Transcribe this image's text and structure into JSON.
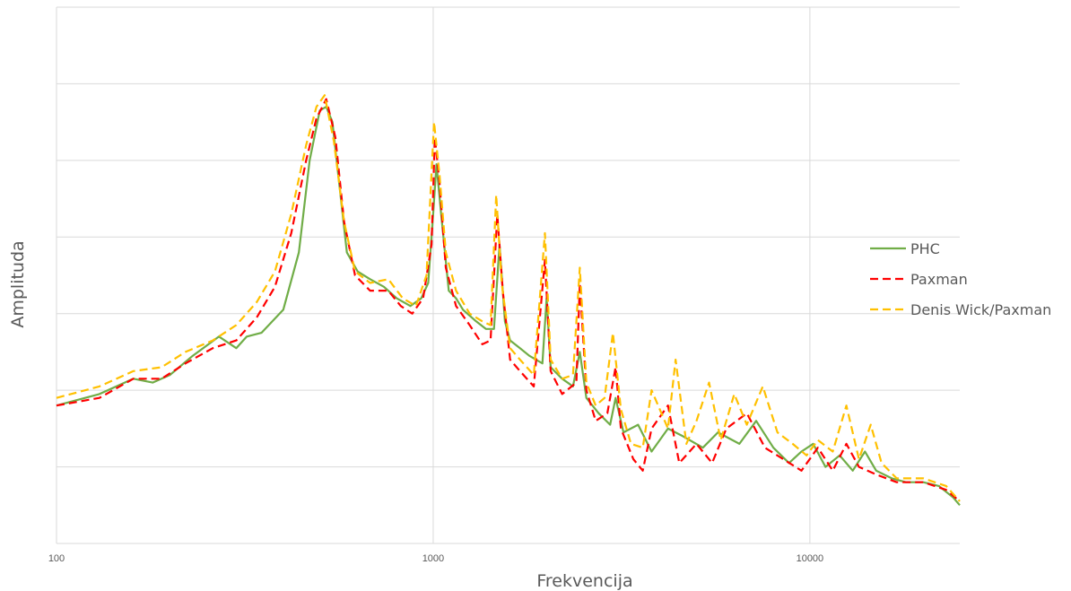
{
  "chart_data": {
    "type": "line",
    "title": "",
    "xlabel": "Frekvencija",
    "ylabel": "Amplituda",
    "x_scale": "log",
    "xlim": [
      100,
      25000
    ],
    "ylim": [
      0,
      7
    ],
    "x_ticks": [
      100,
      1000,
      10000
    ],
    "x_tick_labels": [
      "100",
      "1000",
      "10000"
    ],
    "y_gridlines": [
      1,
      2,
      3,
      4,
      5,
      6,
      7
    ],
    "y_tick_labels_shown": false,
    "grid": true,
    "legend_position": "right",
    "series": [
      {
        "name": "PHC",
        "color": "#70AD47",
        "dash": "solid",
        "points": [
          [
            100,
            1.8
          ],
          [
            130,
            1.95
          ],
          [
            160,
            2.15
          ],
          [
            180,
            2.1
          ],
          [
            200,
            2.2
          ],
          [
            230,
            2.45
          ],
          [
            270,
            2.7
          ],
          [
            300,
            2.55
          ],
          [
            320,
            2.7
          ],
          [
            350,
            2.75
          ],
          [
            400,
            3.05
          ],
          [
            440,
            3.8
          ],
          [
            470,
            5.0
          ],
          [
            500,
            5.65
          ],
          [
            520,
            5.7
          ],
          [
            540,
            5.5
          ],
          [
            560,
            4.8
          ],
          [
            590,
            3.8
          ],
          [
            630,
            3.55
          ],
          [
            680,
            3.45
          ],
          [
            740,
            3.35
          ],
          [
            800,
            3.2
          ],
          [
            870,
            3.1
          ],
          [
            930,
            3.2
          ],
          [
            970,
            3.4
          ],
          [
            1000,
            4.3
          ],
          [
            1020,
            4.95
          ],
          [
            1050,
            4.3
          ],
          [
            1100,
            3.3
          ],
          [
            1150,
            3.2
          ],
          [
            1200,
            3.05
          ],
          [
            1300,
            2.9
          ],
          [
            1380,
            2.8
          ],
          [
            1450,
            2.8
          ],
          [
            1500,
            3.9
          ],
          [
            1550,
            2.9
          ],
          [
            1600,
            2.65
          ],
          [
            1700,
            2.55
          ],
          [
            1800,
            2.45
          ],
          [
            1950,
            2.35
          ],
          [
            2000,
            3.2
          ],
          [
            2050,
            2.3
          ],
          [
            2200,
            2.15
          ],
          [
            2350,
            2.05
          ],
          [
            2450,
            2.5
          ],
          [
            2550,
            1.9
          ],
          [
            2750,
            1.7
          ],
          [
            2950,
            1.55
          ],
          [
            3050,
            1.9
          ],
          [
            3200,
            1.45
          ],
          [
            3500,
            1.55
          ],
          [
            3800,
            1.2
          ],
          [
            4200,
            1.5
          ],
          [
            4600,
            1.4
          ],
          [
            5200,
            1.25
          ],
          [
            5700,
            1.45
          ],
          [
            6500,
            1.3
          ],
          [
            7200,
            1.6
          ],
          [
            8000,
            1.25
          ],
          [
            8800,
            1.05
          ],
          [
            9500,
            1.2
          ],
          [
            10200,
            1.3
          ],
          [
            11000,
            1.0
          ],
          [
            12000,
            1.15
          ],
          [
            13000,
            0.95
          ],
          [
            14000,
            1.2
          ],
          [
            15000,
            0.95
          ],
          [
            16500,
            0.85
          ],
          [
            18000,
            0.8
          ],
          [
            20000,
            0.8
          ],
          [
            22000,
            0.75
          ],
          [
            24000,
            0.6
          ],
          [
            25000,
            0.5
          ]
        ]
      },
      {
        "name": "Paxman",
        "color": "#FF0000",
        "dash": "dashed",
        "points": [
          [
            100,
            1.8
          ],
          [
            130,
            1.9
          ],
          [
            160,
            2.15
          ],
          [
            190,
            2.15
          ],
          [
            220,
            2.35
          ],
          [
            260,
            2.55
          ],
          [
            300,
            2.65
          ],
          [
            340,
            2.95
          ],
          [
            380,
            3.35
          ],
          [
            420,
            4.05
          ],
          [
            460,
            5.0
          ],
          [
            490,
            5.55
          ],
          [
            520,
            5.8
          ],
          [
            550,
            5.3
          ],
          [
            580,
            4.2
          ],
          [
            620,
            3.5
          ],
          [
            680,
            3.3
          ],
          [
            760,
            3.3
          ],
          [
            820,
            3.1
          ],
          [
            880,
            3.0
          ],
          [
            940,
            3.2
          ],
          [
            990,
            3.9
          ],
          [
            1010,
            5.3
          ],
          [
            1040,
            4.7
          ],
          [
            1080,
            3.6
          ],
          [
            1150,
            3.1
          ],
          [
            1250,
            2.85
          ],
          [
            1350,
            2.6
          ],
          [
            1420,
            2.65
          ],
          [
            1480,
            4.3
          ],
          [
            1530,
            3.3
          ],
          [
            1600,
            2.4
          ],
          [
            1700,
            2.25
          ],
          [
            1850,
            2.05
          ],
          [
            1980,
            3.7
          ],
          [
            2050,
            2.25
          ],
          [
            2200,
            1.95
          ],
          [
            2400,
            2.1
          ],
          [
            2450,
            3.4
          ],
          [
            2550,
            2.0
          ],
          [
            2700,
            1.6
          ],
          [
            2900,
            1.7
          ],
          [
            3050,
            2.3
          ],
          [
            3150,
            1.5
          ],
          [
            3400,
            1.1
          ],
          [
            3600,
            0.95
          ],
          [
            3800,
            1.5
          ],
          [
            4200,
            1.8
          ],
          [
            4500,
            1.05
          ],
          [
            5000,
            1.3
          ],
          [
            5500,
            1.05
          ],
          [
            6000,
            1.5
          ],
          [
            6800,
            1.7
          ],
          [
            7600,
            1.25
          ],
          [
            8500,
            1.1
          ],
          [
            9500,
            0.95
          ],
          [
            10500,
            1.25
          ],
          [
            11500,
            0.95
          ],
          [
            12500,
            1.3
          ],
          [
            13500,
            1.0
          ],
          [
            15000,
            0.9
          ],
          [
            17000,
            0.8
          ],
          [
            20000,
            0.8
          ],
          [
            23000,
            0.7
          ],
          [
            25000,
            0.55
          ]
        ]
      },
      {
        "name": "Denis Wick/Paxman",
        "color": "#FFC000",
        "dash": "dashed",
        "points": [
          [
            100,
            1.9
          ],
          [
            130,
            2.05
          ],
          [
            160,
            2.25
          ],
          [
            190,
            2.3
          ],
          [
            220,
            2.5
          ],
          [
            260,
            2.65
          ],
          [
            300,
            2.85
          ],
          [
            340,
            3.15
          ],
          [
            380,
            3.55
          ],
          [
            420,
            4.3
          ],
          [
            460,
            5.2
          ],
          [
            490,
            5.7
          ],
          [
            515,
            5.85
          ],
          [
            545,
            5.25
          ],
          [
            580,
            4.2
          ],
          [
            620,
            3.55
          ],
          [
            680,
            3.4
          ],
          [
            760,
            3.45
          ],
          [
            830,
            3.2
          ],
          [
            900,
            3.1
          ],
          [
            960,
            3.5
          ],
          [
            1005,
            5.5
          ],
          [
            1040,
            4.8
          ],
          [
            1080,
            3.8
          ],
          [
            1150,
            3.3
          ],
          [
            1250,
            3.0
          ],
          [
            1350,
            2.9
          ],
          [
            1420,
            2.85
          ],
          [
            1470,
            4.55
          ],
          [
            1520,
            3.4
          ],
          [
            1600,
            2.55
          ],
          [
            1700,
            2.4
          ],
          [
            1850,
            2.2
          ],
          [
            1980,
            4.05
          ],
          [
            2050,
            2.4
          ],
          [
            2200,
            2.15
          ],
          [
            2350,
            2.2
          ],
          [
            2450,
            3.6
          ],
          [
            2550,
            2.1
          ],
          [
            2700,
            1.8
          ],
          [
            2850,
            1.9
          ],
          [
            3000,
            2.75
          ],
          [
            3150,
            1.75
          ],
          [
            3350,
            1.3
          ],
          [
            3600,
            1.25
          ],
          [
            3800,
            2.0
          ],
          [
            4200,
            1.5
          ],
          [
            4400,
            2.4
          ],
          [
            4700,
            1.3
          ],
          [
            5000,
            1.6
          ],
          [
            5400,
            2.1
          ],
          [
            5800,
            1.35
          ],
          [
            6300,
            1.95
          ],
          [
            6800,
            1.55
          ],
          [
            7500,
            2.05
          ],
          [
            8200,
            1.45
          ],
          [
            9000,
            1.3
          ],
          [
            9800,
            1.15
          ],
          [
            10500,
            1.35
          ],
          [
            11500,
            1.2
          ],
          [
            12500,
            1.8
          ],
          [
            13500,
            1.1
          ],
          [
            14500,
            1.55
          ],
          [
            15500,
            1.05
          ],
          [
            17000,
            0.85
          ],
          [
            20000,
            0.85
          ],
          [
            23000,
            0.75
          ],
          [
            25000,
            0.55
          ]
        ]
      }
    ]
  }
}
